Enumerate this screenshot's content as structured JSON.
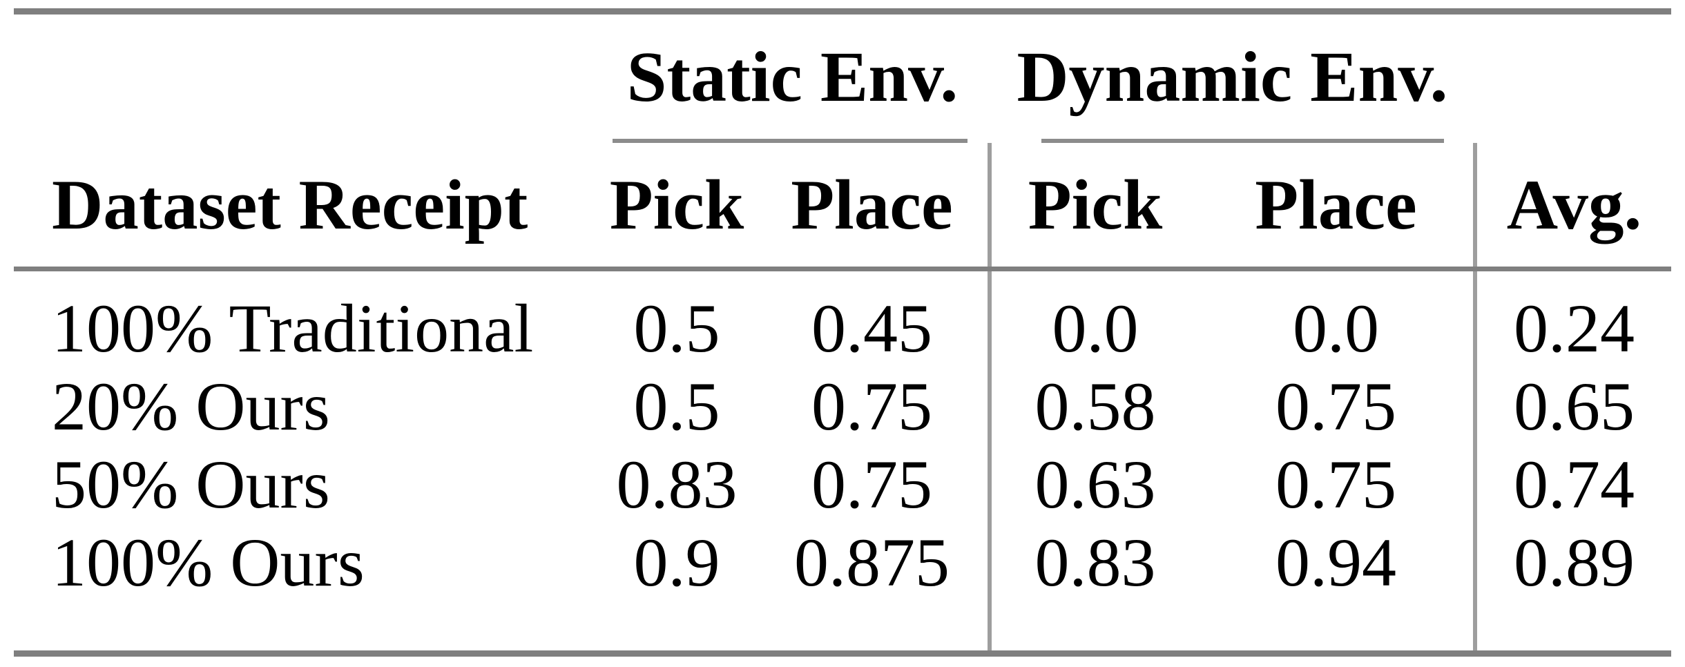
{
  "page": {
    "background": "#ffffff",
    "text_color": "#000000"
  },
  "table": {
    "column_groups": [
      {
        "label": "Static Env.",
        "columns": [
          "Pick",
          "Place"
        ]
      },
      {
        "label": "Dynamic Env.",
        "columns": [
          "Pick",
          "Place"
        ]
      }
    ],
    "header": {
      "row_label": "Dataset Receipt",
      "static_pick": "Pick",
      "static_place": "Place",
      "dynamic_pick": "Pick",
      "dynamic_place": "Place",
      "avg": "Avg."
    },
    "rows": [
      {
        "label": "100% Traditional",
        "static_pick": "0.5",
        "static_place": "0.45",
        "dynamic_pick": "0.0",
        "dynamic_place": "0.0",
        "avg": "0.24"
      },
      {
        "label": "20% Ours",
        "static_pick": "0.5",
        "static_place": "0.75",
        "dynamic_pick": "0.58",
        "dynamic_place": "0.75",
        "avg": "0.65"
      },
      {
        "label": "50% Ours",
        "static_pick": "0.83",
        "static_place": "0.75",
        "dynamic_pick": "0.63",
        "dynamic_place": "0.75",
        "avg": "0.74"
      },
      {
        "label": "100% Ours",
        "static_pick": "0.9",
        "static_place": "0.875",
        "dynamic_pick": "0.83",
        "dynamic_place": "0.94",
        "avg": "0.89"
      }
    ],
    "colors": {
      "rule_heavy": "#7f7f7f",
      "rule_cmid": "#8c8c8c",
      "rule_vertical": "#9e9e9e"
    }
  },
  "chart_data": {
    "type": "table",
    "columns": [
      "Dataset Receipt",
      "Static Env. Pick",
      "Static Env. Place",
      "Dynamic Env. Pick",
      "Dynamic Env. Place",
      "Avg."
    ],
    "rows": [
      [
        "100% Traditional",
        0.5,
        0.45,
        0.0,
        0.0,
        0.24
      ],
      [
        "20% Ours",
        0.5,
        0.75,
        0.58,
        0.75,
        0.65
      ],
      [
        "50% Ours",
        0.83,
        0.75,
        0.63,
        0.75,
        0.74
      ],
      [
        "100% Ours",
        0.9,
        0.875,
        0.83,
        0.94,
        0.89
      ]
    ]
  }
}
